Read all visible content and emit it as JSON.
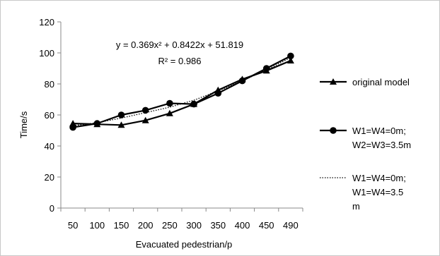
{
  "chart_data": {
    "type": "line",
    "categories": [
      "50",
      "100",
      "150",
      "200",
      "250",
      "300",
      "350",
      "400",
      "450",
      "490"
    ],
    "xlabel": "Evacuated pedestrian/p",
    "ylabel": "Time/s",
    "ylim": [
      0,
      120
    ],
    "yticks": [
      "0",
      "20",
      "40",
      "60",
      "80",
      "100",
      "120"
    ],
    "grid": false,
    "legend_position": "right",
    "series": [
      {
        "name": "original model",
        "marker": "triangle",
        "style": "solid",
        "values": [
          54.5,
          54,
          53.5,
          56.5,
          61,
          67,
          76,
          83,
          88.5,
          95
        ]
      },
      {
        "name": "W1=W4=0m;\nW2=W3=3.5m",
        "marker": "circle",
        "style": "solid",
        "values": [
          52,
          54.5,
          60,
          63,
          67.5,
          67,
          74,
          82,
          90,
          98
        ]
      },
      {
        "name": "W1=W4=0m;\nW1=W4=3.5\nm",
        "marker": "none",
        "style": "dotted",
        "values": [
          53,
          55,
          58,
          61.5,
          65,
          69.5,
          75.5,
          82,
          89,
          97
        ]
      }
    ],
    "annotations": [
      "y = 0.369x² + 0.8422x + 51.819",
      "R² = 0.986"
    ]
  }
}
